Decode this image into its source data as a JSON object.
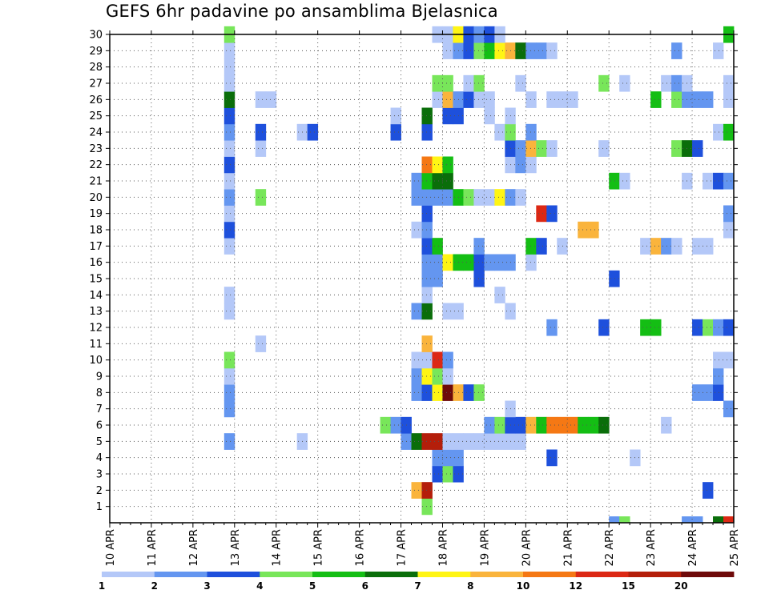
{
  "chart_data": {
    "type": "heatmap",
    "title": "GEFS 6hr padavine po ansamblima Bjelasnica",
    "x_ticks": [
      "10 APR",
      "11 APR",
      "12 APR",
      "13 APR",
      "14 APR",
      "15 APR",
      "16 APR",
      "17 APR",
      "18 APR",
      "19 APR",
      "20 APR",
      "21 APR",
      "22 APR",
      "23 APR",
      "24 APR",
      "25 APR"
    ],
    "y_ticks": [
      1,
      2,
      3,
      4,
      5,
      6,
      7,
      8,
      9,
      10,
      11,
      12,
      13,
      14,
      15,
      16,
      17,
      18,
      19,
      20,
      21,
      22,
      23,
      24,
      25,
      26,
      27,
      28,
      29,
      30
    ],
    "x_range_steps": [
      0,
      60
    ],
    "y_range": [
      0,
      30
    ],
    "grid": true,
    "legend": {
      "placement": "bottom",
      "colors": [
        "#b4c8f8",
        "#6496f0",
        "#1e50dc",
        "#78e65a",
        "#14be14",
        "#0a6e0a",
        "#fff514",
        "#fab43c",
        "#f57814",
        "#dc2814",
        "#b41e0a",
        "#6e0a0a"
      ],
      "labels": [
        "1",
        "2",
        "3",
        "4",
        "5",
        "6",
        "7",
        "8",
        "10",
        "12",
        "15",
        "20"
      ]
    },
    "palette": {
      "a": "#b4c8f8",
      "b": "#6496f0",
      "c": "#1e50dc",
      "d": "#78e65a",
      "e": "#14be14",
      "f": "#0a6e0a",
      "g": "#fff514",
      "h": "#fab43c",
      "i": "#f57814",
      "j": "#dc2814",
      "k": "#b41e0a",
      "l": "#6e0a0a"
    },
    "rows": {
      "0": "................................................bd.....bb.fjjjjlhbba...",
      "1": "..............................d.....................................a",
      "2": ".............................hk..........................c......aa.",
      "3": "...............................cdc...............................",
      "4": "...............................bbb........c.......a...............",
      "5": "...........b......a.........bfkkaaaaaaaa..........................",
      "6": "..........................dbc.......bdccheiiieef.....a.........aa",
      "7": "...........b..........................a....................bd......",
      "8": "...........b.................bcglhcd....................bbc.......a",
      "9": "...........a.................bgda.........................b.b.....b",
      "10": "...........d.................aajb.........................aa......a",
      "11": "..............a...............h..................................",
      "12": "..........................................b....c...ee...cdbcc.....",
      "13": "...........a.................bf.aa....a.........................bhc",
      "14": "...........a..................a......a............................",
      "15": "..............................bb...c............c.....",
      "16": "..............................bbgeecbbb.a.....................a",
      "17": "...........a..................ce...b....ec.a.......ahba.aa",
      "18": "...........c.................ab..............hh............a",
      "19": "...........a..................c..........jc................b",
      "20": "...........b..d..............bbbbedaagba..........................",
      "21": "...........a.................beff...............ea.....a.acb....cd",
      "22": "...........c..................ige.....aba.........................",
      "23": "...........a..a.......................cbhda....a......dfc.......ci.aaa",
      "24": "...........b..c...ac.......c..c......ad.b.................ae",
      "25": "...........c...............a..f.cc..a.a.......................c..b",
      "26": "...........f..aa...............ahbcaa...a.aaa.......e.dbbb.acciljb",
      "27": "...........a...................dd.ad...a.......d.a...aba...a...b.ac",
      "28": "...........a.........................................................",
      "29": "...........a....................abcdeghfbba...........b...a..aa....a",
      "30": "...........d...................aagcbca.....................ehaa...."
    }
  }
}
